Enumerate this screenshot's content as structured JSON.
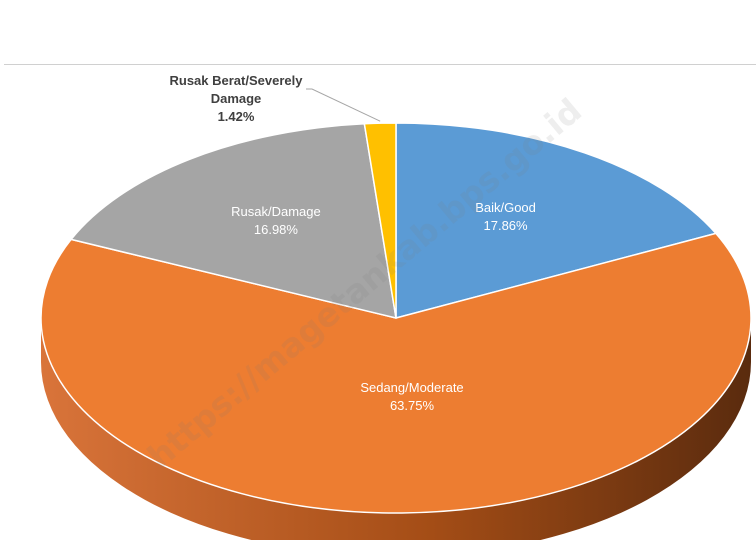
{
  "chart_data": {
    "type": "pie",
    "title": "",
    "slices": [
      {
        "label": "Baik/Good",
        "value": 17.86,
        "value_label": "17.86%",
        "color": "#5b9bd5"
      },
      {
        "label": "Sedang/Moderate",
        "value": 63.75,
        "value_label": "63.75%",
        "color": "#ed7d31"
      },
      {
        "label": "Rusak/Damage",
        "value": 16.98,
        "value_label": "16.98%",
        "color": "#a5a5a5"
      },
      {
        "label": "Rusak Berat/Severely Damage",
        "label_lines": [
          "Rusak Berat/Severely",
          "Damage"
        ],
        "value": 1.42,
        "value_label": "1.42%",
        "color": "#ffc000"
      }
    ],
    "style": "3d"
  },
  "watermark": "https://magetankab.bps.go.id"
}
